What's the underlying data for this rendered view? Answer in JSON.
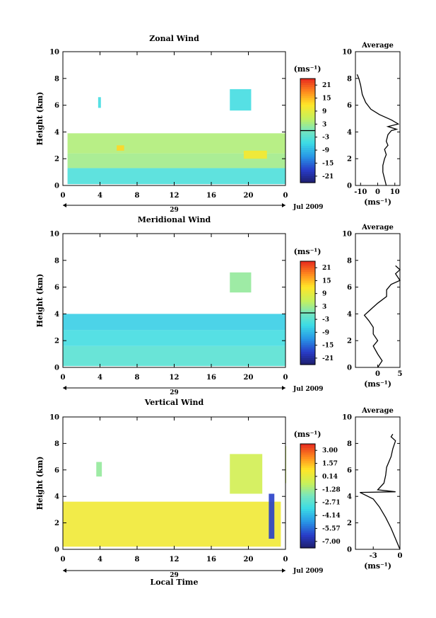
{
  "chart_data": [
    {
      "type": "heatmap",
      "title": "Zonal Wind",
      "xlabel": "",
      "ylabel": "Height (km)",
      "xlim": [
        0,
        24
      ],
      "ylim": [
        0,
        10
      ],
      "x_ticks": [
        "0",
        "4",
        "8",
        "12",
        "16",
        "20",
        "0"
      ],
      "y_ticks": [
        "0",
        "2",
        "4",
        "6",
        "8",
        "10"
      ],
      "date_bar": {
        "day": "29",
        "month_label": "Jul 2009"
      },
      "colorbar": {
        "unit": "(ms⁻¹)",
        "ticks": [
          "21",
          "15",
          "9",
          "3",
          "-3",
          "-9",
          "-15",
          "-21"
        ],
        "range": [
          -24,
          24
        ],
        "zero_line": true
      },
      "data_regions": [
        {
          "x": [
            0.5,
            24
          ],
          "y": [
            0.1,
            1.3
          ],
          "value": -4
        },
        {
          "x": [
            0.5,
            24
          ],
          "y": [
            1.3,
            2.4
          ],
          "value": 3
        },
        {
          "x": [
            0.5,
            24
          ],
          "y": [
            2.4,
            3.9
          ],
          "value": 4
        },
        {
          "x": [
            5.8,
            6.6
          ],
          "y": [
            2.6,
            3.0
          ],
          "value": 13
        },
        {
          "x": [
            19.5,
            22
          ],
          "y": [
            2.0,
            2.6
          ],
          "value": 11
        },
        {
          "x": [
            18,
            20.3
          ],
          "y": [
            5.6,
            7.2
          ],
          "value": -5
        },
        {
          "x": [
            3.8,
            4.1
          ],
          "y": [
            5.8,
            6.6
          ],
          "value": -5
        }
      ],
      "average_panel": {
        "title": "Average",
        "xlabel": "(ms⁻¹)",
        "xlim": [
          -13,
          13
        ],
        "x_ticks": [
          "-10",
          "0",
          "10"
        ],
        "ylim": [
          0,
          10
        ],
        "y_ticks": [
          "0",
          "2",
          "4",
          "6",
          "8",
          "10"
        ],
        "profile": [
          [
            5,
            0.0
          ],
          [
            4,
            0.5
          ],
          [
            3,
            1.0
          ],
          [
            3,
            1.5
          ],
          [
            4,
            2.0
          ],
          [
            5,
            2.3
          ],
          [
            4,
            2.7
          ],
          [
            6,
            3.0
          ],
          [
            5,
            3.3
          ],
          [
            6,
            3.8
          ],
          [
            8,
            4.1
          ],
          [
            11,
            4.2
          ],
          [
            6,
            4.4
          ],
          [
            12,
            4.6
          ],
          [
            8,
            4.9
          ],
          [
            1,
            5.3
          ],
          [
            -4,
            5.7
          ],
          [
            -7,
            6.2
          ],
          [
            -9,
            6.8
          ],
          [
            -10,
            7.5
          ],
          [
            -11,
            8.0
          ],
          [
            -12,
            8.3
          ]
        ]
      }
    },
    {
      "type": "heatmap",
      "title": "Meridional Wind",
      "xlabel": "",
      "ylabel": "Height (km)",
      "xlim": [
        0,
        24
      ],
      "ylim": [
        0,
        10
      ],
      "x_ticks": [
        "0",
        "4",
        "8",
        "12",
        "16",
        "20",
        "0"
      ],
      "y_ticks": [
        "0",
        "2",
        "4",
        "6",
        "8",
        "10"
      ],
      "date_bar": {
        "day": "29",
        "month_label": "Jul 2009"
      },
      "colorbar": {
        "unit": "(ms⁻¹)",
        "ticks": [
          "21",
          "15",
          "9",
          "3",
          "-3",
          "-9",
          "-15",
          "-21"
        ],
        "range": [
          -24,
          24
        ],
        "zero_line": true
      },
      "data_regions": [
        {
          "x": [
            0,
            24
          ],
          "y": [
            0.1,
            1.6
          ],
          "value": -3
        },
        {
          "x": [
            0,
            24
          ],
          "y": [
            1.6,
            2.8
          ],
          "value": -5
        },
        {
          "x": [
            0,
            24
          ],
          "y": [
            2.8,
            4.0
          ],
          "value": -7
        },
        {
          "x": [
            18,
            20.3
          ],
          "y": [
            5.6,
            7.1
          ],
          "value": 2
        }
      ],
      "average_panel": {
        "title": "Average",
        "xlabel": "(ms⁻¹)",
        "xlim": [
          -5,
          5
        ],
        "x_ticks": [
          "0",
          "5"
        ],
        "ylim": [
          0,
          10
        ],
        "y_ticks": [
          "0",
          "2",
          "4",
          "6",
          "8",
          "10"
        ],
        "profile": [
          [
            0,
            0.0
          ],
          [
            1,
            0.5
          ],
          [
            0,
            1.0
          ],
          [
            -1,
            1.6
          ],
          [
            0,
            2.0
          ],
          [
            -1,
            2.5
          ],
          [
            -1,
            3.0
          ],
          [
            -2,
            3.5
          ],
          [
            -3,
            3.9
          ],
          [
            -2,
            4.2
          ],
          [
            -1,
            4.5
          ],
          [
            0,
            4.8
          ],
          [
            2,
            5.3
          ],
          [
            2,
            5.8
          ],
          [
            3,
            6.2
          ],
          [
            5,
            6.5
          ],
          [
            4,
            7.0
          ],
          [
            5,
            7.3
          ],
          [
            4,
            7.6
          ]
        ]
      }
    },
    {
      "type": "heatmap",
      "title": "Vertical Wind",
      "xlabel": "Local Time",
      "ylabel": "Height (km)",
      "xlim": [
        0,
        24
      ],
      "ylim": [
        0,
        10
      ],
      "x_ticks": [
        "0",
        "4",
        "8",
        "12",
        "16",
        "20",
        "0"
      ],
      "y_ticks": [
        "0",
        "2",
        "4",
        "6",
        "8",
        "10"
      ],
      "date_bar": {
        "day": "29",
        "month_label": "Jul 2009"
      },
      "colorbar": {
        "unit": "(ms⁻¹)",
        "ticks": [
          "3.00",
          "1.57",
          "0.14",
          "-1.28",
          "-2.71",
          "-4.14",
          "-5.57",
          "-7.00"
        ],
        "range": [
          -8,
          4
        ],
        "zero_line": false
      },
      "data_regions": [
        {
          "x": [
            0,
            23.5
          ],
          "y": [
            0.2,
            3.6
          ],
          "value": 0.6
        },
        {
          "x": [
            3.6,
            4.2
          ],
          "y": [
            5.5,
            6.6
          ],
          "value": -1.5
        },
        {
          "x": [
            18,
            21.5
          ],
          "y": [
            4.2,
            7.2
          ],
          "value": -0.3
        },
        {
          "x": [
            22.2,
            22.8
          ],
          "y": [
            0.8,
            4.2
          ],
          "value": -6.5
        },
        {
          "x": [
            24.5,
            24.8
          ],
          "y": [
            5.0,
            7.8
          ],
          "value": -0.5
        }
      ],
      "average_panel": {
        "title": "Average",
        "xlabel": "(ms⁻¹)",
        "xlim": [
          -5,
          0
        ],
        "x_ticks": [
          "-3",
          "0"
        ],
        "ylim": [
          0,
          10
        ],
        "y_ticks": [
          "0",
          "2",
          "4",
          "6",
          "8",
          "10"
        ],
        "profile": [
          [
            0,
            0.0
          ],
          [
            -0.5,
            0.8
          ],
          [
            -1,
            1.6
          ],
          [
            -1.6,
            2.4
          ],
          [
            -2.3,
            3.2
          ],
          [
            -3,
            3.8
          ],
          [
            -4.5,
            4.3
          ],
          [
            -0.5,
            4.35
          ],
          [
            -2.5,
            4.5
          ],
          [
            -1.8,
            5.0
          ],
          [
            -1.6,
            5.6
          ],
          [
            -1.5,
            6.2
          ],
          [
            -1,
            7.0
          ],
          [
            -0.8,
            7.6
          ],
          [
            -0.5,
            8.2
          ],
          [
            -1,
            8.5
          ],
          [
            -0.8,
            8.7
          ]
        ]
      }
    }
  ]
}
